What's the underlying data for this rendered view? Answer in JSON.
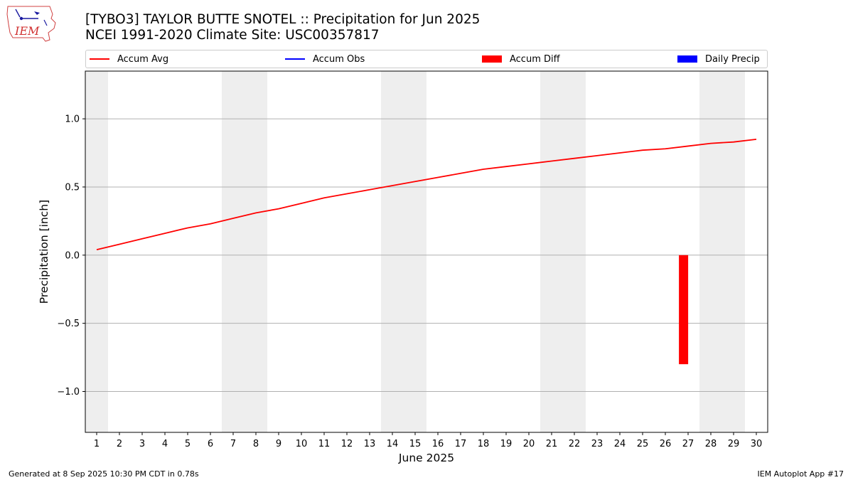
{
  "header": {
    "title": "[TYBO3] TAYLOR BUTTE SNOTEL :: Precipitation for Jun 2025",
    "subtitle": "NCEI 1991-2020 Climate Site: USC00357817",
    "logo_text": "IEM"
  },
  "legend": {
    "items": [
      {
        "label": "Accum Avg",
        "kind": "line",
        "color": "#ff0000"
      },
      {
        "label": "Accum Obs",
        "kind": "line",
        "color": "#0000ff"
      },
      {
        "label": "Accum Diff",
        "kind": "rect",
        "color": "#ff0000"
      },
      {
        "label": "Daily Precip",
        "kind": "rect",
        "color": "#0000ff"
      }
    ]
  },
  "footer": {
    "generated": "Generated at 8 Sep 2025 10:30 PM CDT in 0.78s",
    "app": "IEM Autoplot App #17"
  },
  "chart_data": {
    "type": "line",
    "xlabel": "June 2025",
    "ylabel": "Precipitation [inch]",
    "x": [
      1,
      2,
      3,
      4,
      5,
      6,
      7,
      8,
      9,
      10,
      11,
      12,
      13,
      14,
      15,
      16,
      17,
      18,
      19,
      20,
      21,
      22,
      23,
      24,
      25,
      26,
      27,
      28,
      29,
      30
    ],
    "xlim": [
      0.5,
      30.5
    ],
    "ylim": [
      -1.3,
      1.35
    ],
    "yticks": [
      1.0,
      0.5,
      0.0,
      -0.5,
      -1.0
    ],
    "ytick_labels": [
      "1.0",
      "0.5",
      "0.0",
      "−0.5",
      "−1.0"
    ],
    "grid": "y",
    "weekend_shading": [
      [
        0.5,
        1.5
      ],
      [
        6.5,
        8.5
      ],
      [
        13.5,
        15.5
      ],
      [
        20.5,
        22.5
      ],
      [
        27.5,
        29.5
      ]
    ],
    "series": [
      {
        "name": "Accum Avg",
        "kind": "line",
        "color": "#ff0000",
        "values": [
          0.04,
          0.08,
          0.12,
          0.16,
          0.2,
          0.23,
          0.27,
          0.31,
          0.34,
          0.38,
          0.42,
          0.45,
          0.48,
          0.51,
          0.54,
          0.57,
          0.6,
          0.63,
          0.65,
          0.67,
          0.69,
          0.71,
          0.73,
          0.75,
          0.77,
          0.78,
          0.8,
          0.82,
          0.83,
          0.85
        ]
      },
      {
        "name": "Accum Diff",
        "kind": "bar",
        "color": "#ff0000",
        "points": [
          {
            "x": 26.8,
            "value": -0.8
          }
        ]
      }
    ]
  }
}
